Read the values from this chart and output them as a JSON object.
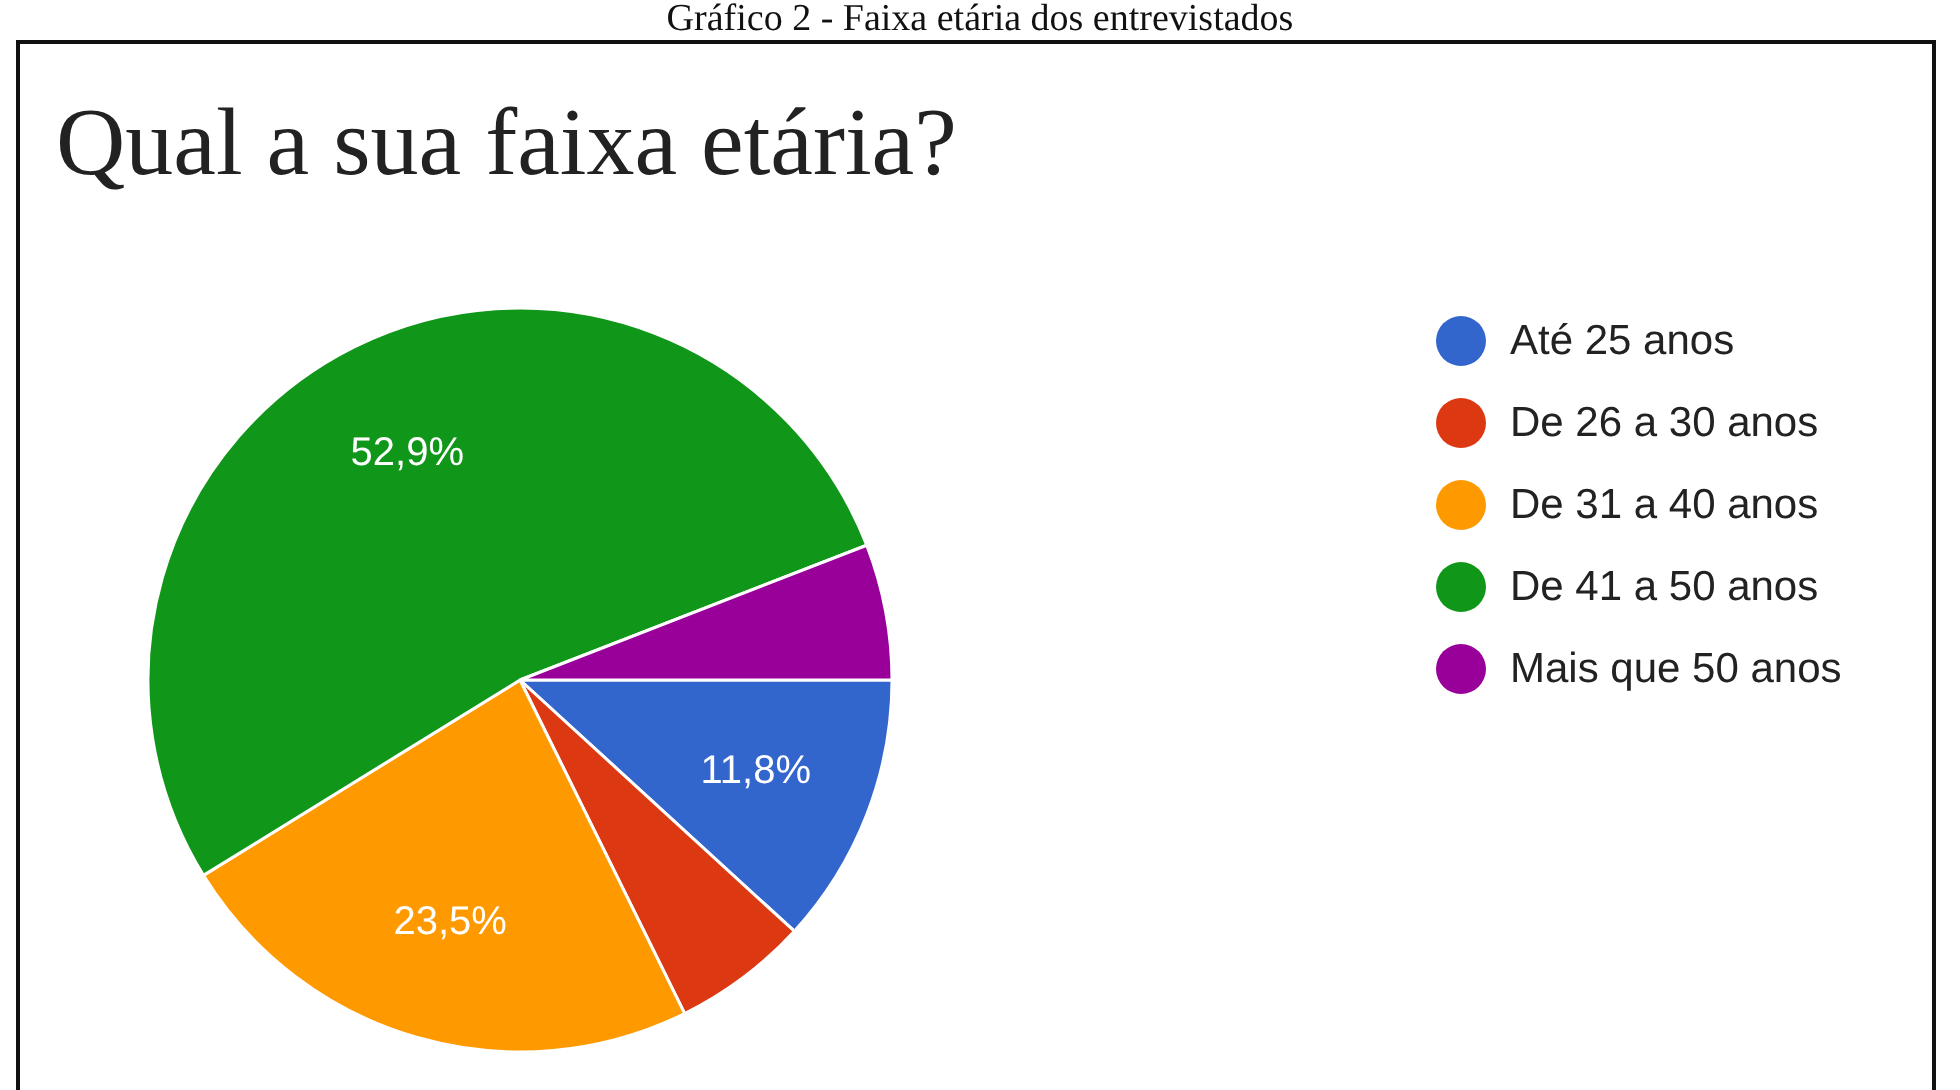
{
  "chart_data": {
    "type": "pie",
    "title": "Qual a sua faixa etária?",
    "annotations": [
      "Gráfico 2 - Faixa etária dos entrevistados"
    ],
    "categories": [
      "Até 25 anos",
      "De 26 a 30 anos",
      "De 31 a 40 anos",
      "De 41 a 50 anos",
      "Mais que 50 anos"
    ],
    "values": [
      11.8,
      5.9,
      23.5,
      52.9,
      5.9
    ],
    "value_labels": [
      "11,8%",
      null,
      "23,5%",
      "52,9%",
      null
    ],
    "colors": [
      "#3366cc",
      "#dc3912",
      "#ff9900",
      "#109618",
      "#990099"
    ],
    "legend": "right"
  }
}
